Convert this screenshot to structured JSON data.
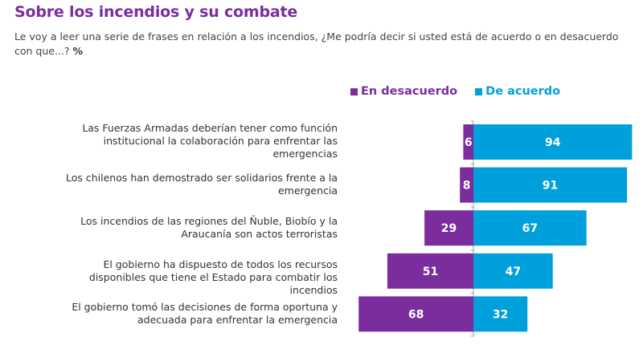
{
  "title": "Sobre los incendios y su combate",
  "subtitle_text": "Le voy a leer una serie de frases en relación a los incendios, ¿Me podría decir si usted está de acuerdo o en desacuerdo con que...?",
  "subtitle_unit": "%",
  "colors": {
    "disagree": "#7b2d9e",
    "agree": "#00a0dc",
    "title": "#7b2d9e"
  },
  "chart_data": {
    "type": "bar",
    "orientation": "horizontal-diverging",
    "title": "Sobre los incendios y su combate",
    "unit": "%",
    "legend": [
      "En desacuerdo",
      "De acuerdo"
    ],
    "legend_position": "top-right",
    "categories": [
      "Las Fuerzas Armadas deberían tener como función institucional la colaboración para enfrentar las emergencias",
      "Los chilenos han demostrado ser solidarios frente a la emergencia",
      "Los incendios de las regiones del Ñuble, Biobío y la Araucanía son actos terroristas",
      "El gobierno ha dispuesto de todos los recursos disponibles que tiene el Estado para combatir los incendios",
      "El gobierno tomó las decisiones de forma oportuna y adecuada para enfrentar la emergencia"
    ],
    "series": [
      {
        "name": "En desacuerdo",
        "values": [
          6,
          8,
          29,
          51,
          68
        ]
      },
      {
        "name": "De acuerdo",
        "values": [
          94,
          91,
          67,
          47,
          32
        ]
      }
    ],
    "grid": false
  }
}
